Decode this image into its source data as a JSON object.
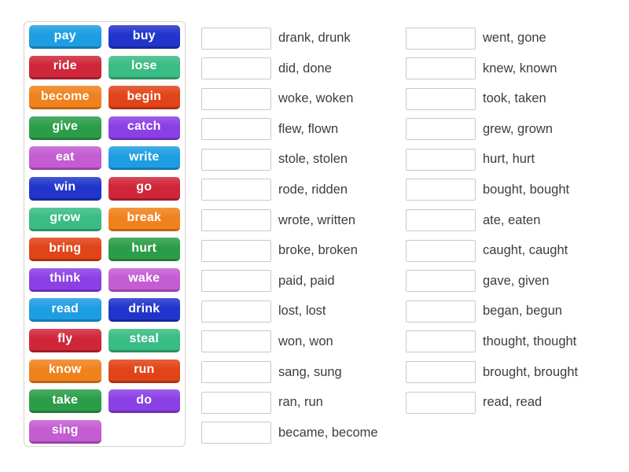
{
  "activity": {
    "type": "match-up-exercise",
    "page_bg": "#ffffff",
    "panel_border": "#d6d2cc",
    "slot_border": "#c9c9c9",
    "label_color": "#3d3d3d"
  },
  "colors": {
    "blue": {
      "bg": "#1d9ee3",
      "edge": "#1679b3"
    },
    "royal": {
      "bg": "#2135cc",
      "edge": "#19279c"
    },
    "crimson": {
      "bg": "#d02639",
      "edge": "#a01c2b"
    },
    "emerald": {
      "bg": "#3abc85",
      "edge": "#2c9166"
    },
    "orange": {
      "bg": "#f0821e",
      "edge": "#c26312"
    },
    "vermilion": {
      "bg": "#e04418",
      "edge": "#ad3110"
    },
    "forest": {
      "bg": "#2b9d49",
      "edge": "#217a38"
    },
    "purple": {
      "bg": "#8b40e5",
      "edge": "#6d2fb6"
    },
    "orchid": {
      "bg": "#c45cd2",
      "edge": "#9d43a8"
    }
  },
  "tiles": [
    {
      "label": "pay",
      "color": "blue"
    },
    {
      "label": "buy",
      "color": "royal"
    },
    {
      "label": "ride",
      "color": "crimson"
    },
    {
      "label": "lose",
      "color": "emerald"
    },
    {
      "label": "become",
      "color": "orange"
    },
    {
      "label": "begin",
      "color": "vermilion"
    },
    {
      "label": "give",
      "color": "forest"
    },
    {
      "label": "catch",
      "color": "purple"
    },
    {
      "label": "eat",
      "color": "orchid"
    },
    {
      "label": "write",
      "color": "blue"
    },
    {
      "label": "win",
      "color": "royal"
    },
    {
      "label": "go",
      "color": "crimson"
    },
    {
      "label": "grow",
      "color": "emerald"
    },
    {
      "label": "break",
      "color": "orange"
    },
    {
      "label": "bring",
      "color": "vermilion"
    },
    {
      "label": "hurt",
      "color": "forest"
    },
    {
      "label": "think",
      "color": "purple"
    },
    {
      "label": "wake",
      "color": "orchid"
    },
    {
      "label": "read",
      "color": "blue"
    },
    {
      "label": "drink",
      "color": "royal"
    },
    {
      "label": "fly",
      "color": "crimson"
    },
    {
      "label": "steal",
      "color": "emerald"
    },
    {
      "label": "know",
      "color": "orange"
    },
    {
      "label": "run",
      "color": "vermilion"
    },
    {
      "label": "take",
      "color": "forest"
    },
    {
      "label": "do",
      "color": "purple"
    },
    {
      "label": "sing",
      "color": "orchid"
    }
  ],
  "answer_columns": [
    {
      "items": [
        "drank, drunk",
        "did, done",
        "woke, woken",
        "flew, flown",
        "stole, stolen",
        "rode, ridden",
        "wrote, written",
        "broke, broken",
        "paid, paid",
        "lost, lost",
        "won, won",
        "sang, sung",
        "ran, run",
        "became, become"
      ]
    },
    {
      "items": [
        "went, gone",
        "knew, known",
        "took, taken",
        "grew, grown",
        "hurt, hurt",
        "bought, bought",
        "ate, eaten",
        "caught, caught",
        "gave, given",
        "began, begun",
        "thought, thought",
        "brought, brought",
        "read, read"
      ]
    }
  ]
}
